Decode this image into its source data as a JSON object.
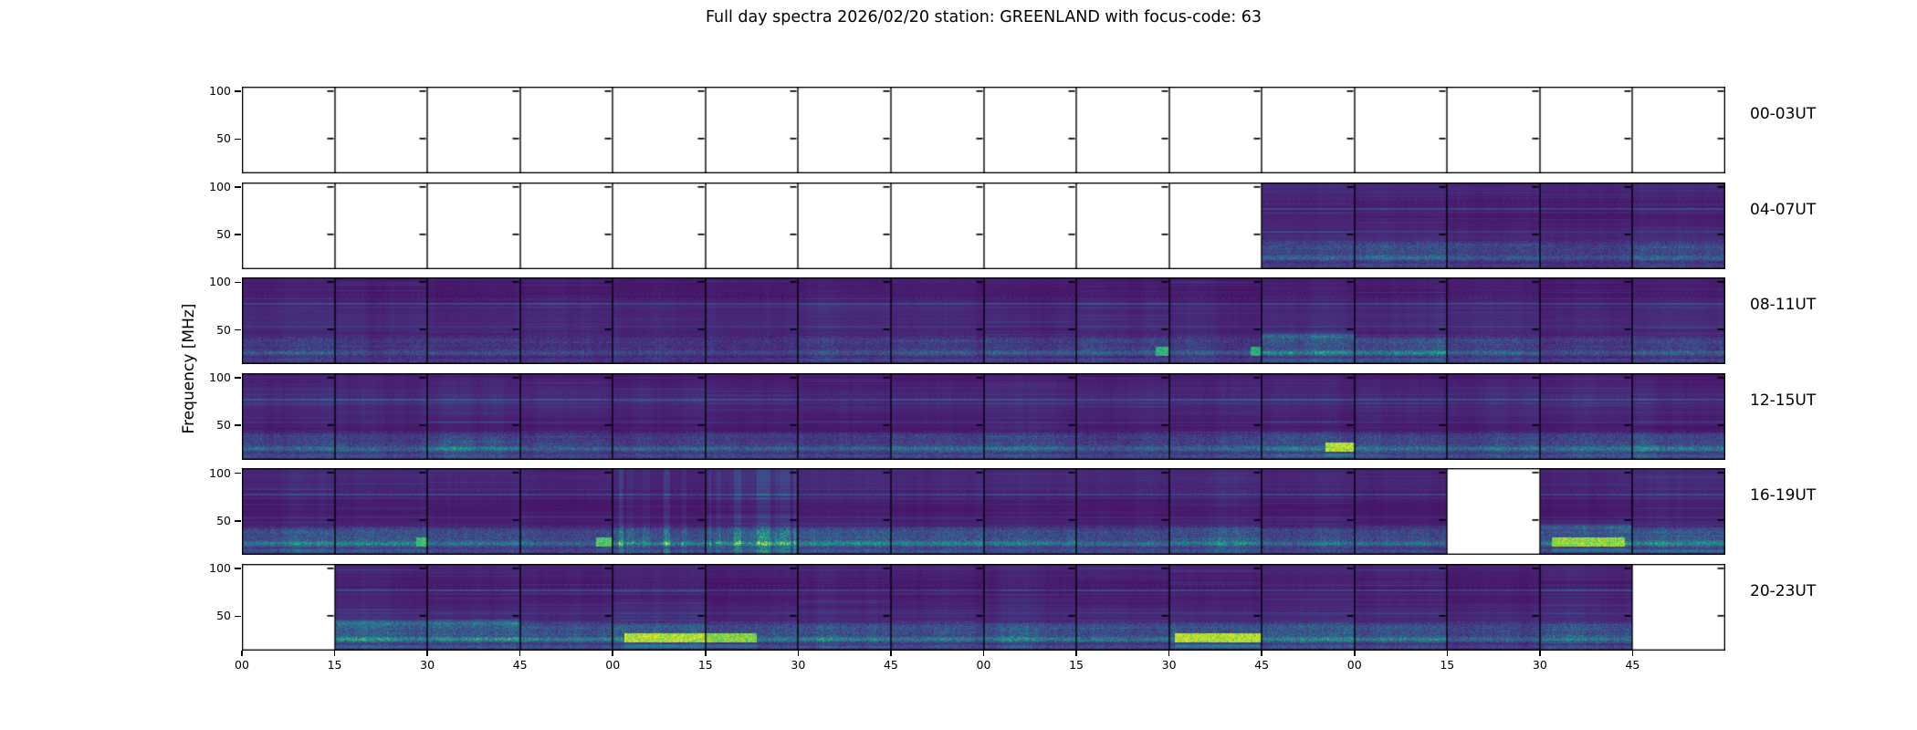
{
  "title": "Full day spectra 2026/02/20 station: GREENLAND with focus-code: 63",
  "y_axis": {
    "label": "Frequency [MHz]",
    "tick_labels": [
      "100",
      "50"
    ]
  },
  "x_axis": {
    "tick_labels": [
      "00",
      "15",
      "30",
      "45",
      "00",
      "15",
      "30",
      "45",
      "00",
      "15",
      "30",
      "45",
      "00",
      "15",
      "30",
      "45"
    ]
  },
  "colors": {
    "figure_bg": "#ffffff",
    "axis": "#000000",
    "empty_segment": "#ffffff",
    "spectrogram_base": "#46327e",
    "spectrogram_mid": "#2a788e",
    "spectrogram_bright": "#fde725"
  },
  "chart_data": {
    "type": "heatmap",
    "title": "Full day spectra 2026/02/20 station: GREENLAND with focus-code: 63",
    "date": "2026/02/20",
    "station": "GREENLAND",
    "focus_code": 63,
    "ylabel": "Frequency [MHz]",
    "y_ticks_mhz": [
      100,
      50
    ],
    "segment_minutes": 15,
    "segments_per_row": 16,
    "colormap": "viridis",
    "legend": "null segment = no data (white panel); bottom_activity 0-1 = strength of low-frequency emission band; burst = bright yellow-green burst intensity; burst_x = fractional x-range of burst; vertical_streaks = vertical interference striping",
    "rows": [
      {
        "label": "00-03UT",
        "segments": [
          null,
          null,
          null,
          null,
          null,
          null,
          null,
          null,
          null,
          null,
          null,
          null,
          null,
          null,
          null,
          null
        ]
      },
      {
        "label": "04-07UT",
        "segments": [
          null,
          null,
          null,
          null,
          null,
          null,
          null,
          null,
          null,
          null,
          null,
          {
            "bottom_activity": 0.3
          },
          {
            "bottom_activity": 0.4
          },
          {
            "bottom_activity": 0.3
          },
          {
            "bottom_activity": 0.28
          },
          {
            "bottom_activity": 0.32
          }
        ]
      },
      {
        "label": "08-11UT",
        "segments": [
          {
            "bottom_activity": 0.3
          },
          {
            "bottom_activity": 0.25
          },
          {
            "bottom_activity": 0.28
          },
          {
            "bottom_activity": 0.2
          },
          {
            "bottom_activity": 0.25
          },
          {
            "bottom_activity": 0.2
          },
          {
            "bottom_activity": 0.25
          },
          {
            "bottom_activity": 0.35
          },
          {
            "bottom_activity": 0.4
          },
          {
            "bottom_activity": 0.35,
            "burst": 0.4,
            "burst_x": [
              0.85,
              1
            ]
          },
          {
            "bottom_activity": 0.35,
            "burst": 0.35,
            "burst_x": [
              0.88,
              1
            ]
          },
          {
            "bottom_activity": 0.6
          },
          {
            "bottom_activity": 0.55
          },
          {
            "bottom_activity": 0.35
          },
          {
            "bottom_activity": 0.3
          },
          {
            "bottom_activity": 0.35
          }
        ]
      },
      {
        "label": "12-15UT",
        "segments": [
          {
            "bottom_activity": 0.33
          },
          {
            "bottom_activity": 0.3
          },
          {
            "bottom_activity": 0.4
          },
          {
            "bottom_activity": 0.3
          },
          {
            "bottom_activity": 0.32
          },
          {
            "bottom_activity": 0.35
          },
          {
            "bottom_activity": 0.38
          },
          {
            "bottom_activity": 0.45
          },
          {
            "bottom_activity": 0.4
          },
          {
            "bottom_activity": 0.3
          },
          {
            "bottom_activity": 0.35
          },
          {
            "bottom_activity": 0.5,
            "burst": 0.95,
            "burst_x": [
              0.68,
              1
            ]
          },
          {
            "bottom_activity": 0.45
          },
          {
            "bottom_activity": 0.4
          },
          {
            "bottom_activity": 0.42
          },
          {
            "bottom_activity": 0.55
          }
        ]
      },
      {
        "label": "16-19UT",
        "segments": [
          {
            "bottom_activity": 0.5
          },
          {
            "bottom_activity": 0.55,
            "burst": 0.5,
            "burst_x": [
              0.88,
              1
            ]
          },
          {
            "bottom_activity": 0.45
          },
          {
            "bottom_activity": 0.45,
            "burst": 0.6,
            "burst_x": [
              0.82,
              1
            ]
          },
          {
            "bottom_activity": 0.55,
            "vertical_streaks": true
          },
          {
            "bottom_activity": 0.45,
            "vertical_streaks": true
          },
          {
            "bottom_activity": 0.5
          },
          {
            "bottom_activity": 0.52
          },
          {
            "bottom_activity": 0.45
          },
          {
            "bottom_activity": 0.4
          },
          {
            "bottom_activity": 0.45
          },
          {
            "bottom_activity": 0.4
          },
          {
            "bottom_activity": 0.45
          },
          null,
          {
            "bottom_activity": 0.62,
            "burst": 0.85,
            "burst_x": [
              0.12,
              0.92
            ]
          },
          {
            "bottom_activity": 0.5
          }
        ]
      },
      {
        "label": "20-23UT",
        "segments": [
          null,
          {
            "bottom_activity": 0.65
          },
          {
            "bottom_activity": 0.62
          },
          {
            "bottom_activity": 0.55
          },
          {
            "bottom_activity": 0.55,
            "burst": 0.95,
            "burst_x": [
              0.12,
              1
            ]
          },
          {
            "bottom_activity": 0.55,
            "burst": 0.8,
            "burst_x": [
              0,
              0.55
            ]
          },
          {
            "bottom_activity": 0.55
          },
          {
            "bottom_activity": 0.5
          },
          {
            "bottom_activity": 0.55
          },
          {
            "bottom_activity": 0.5
          },
          {
            "bottom_activity": 0.55,
            "burst": 0.95,
            "burst_x": [
              0.05,
              1
            ]
          },
          {
            "bottom_activity": 0.55
          },
          {
            "bottom_activity": 0.5
          },
          {
            "bottom_activity": 0.42
          },
          {
            "bottom_activity": 0.45
          },
          null
        ]
      }
    ]
  }
}
